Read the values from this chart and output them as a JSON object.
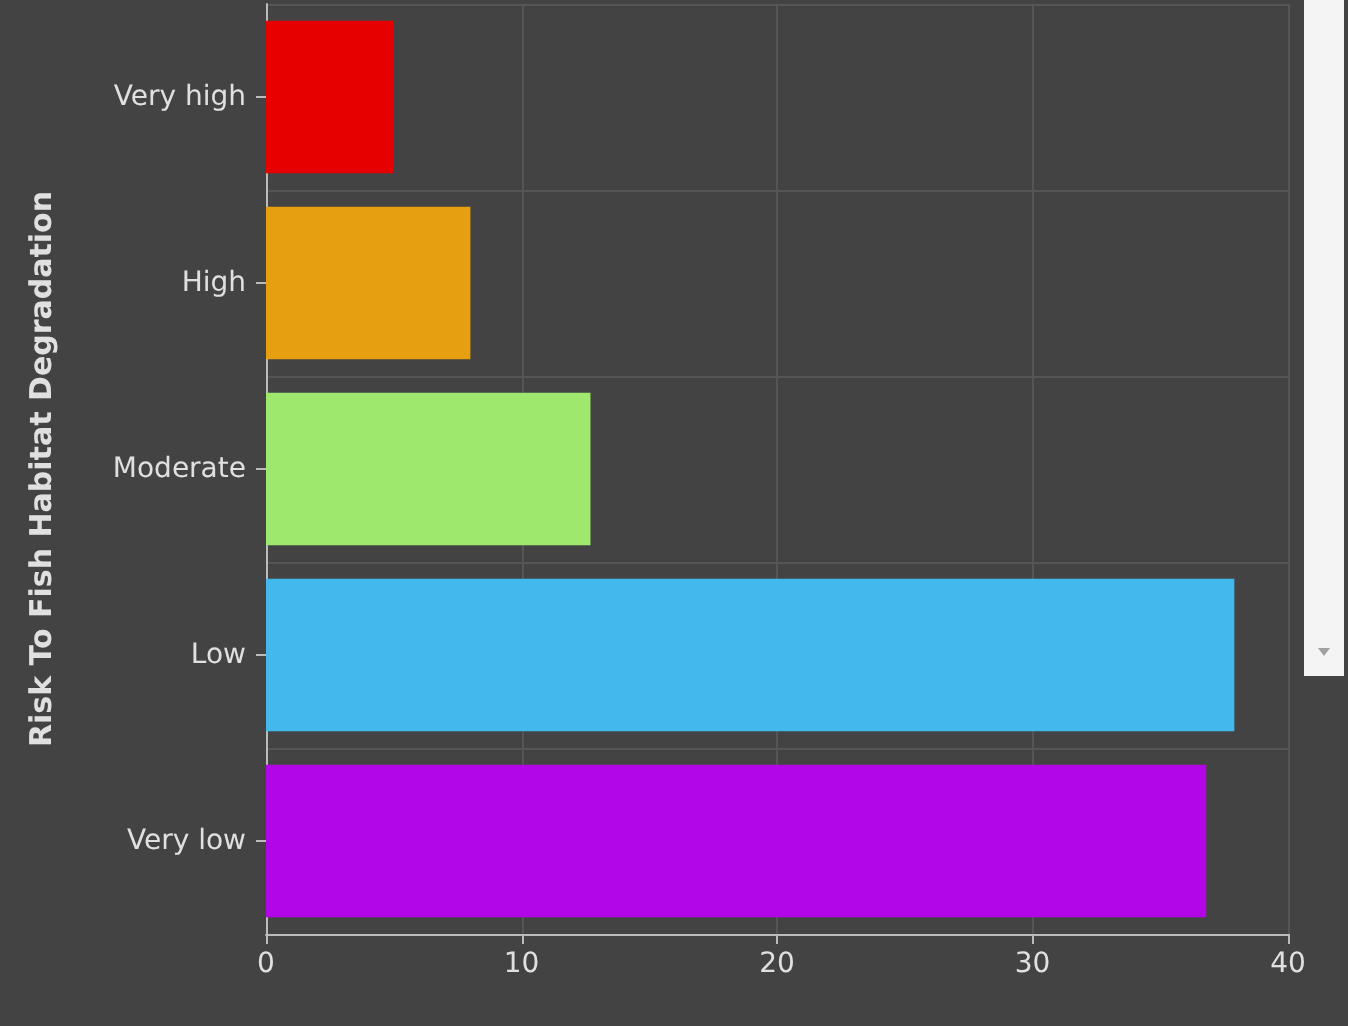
{
  "chart_data": {
    "type": "bar",
    "orientation": "horizontal",
    "ylabel": "Risk To Fish Habitat Degradation",
    "categories": [
      "Very high",
      "High",
      "Moderate",
      "Low",
      "Very low"
    ],
    "values": [
      5,
      8,
      12.7,
      37.9,
      36.8
    ],
    "colors": [
      "#e60000",
      "#e69f10",
      "#9ee86e",
      "#42b8ec",
      "#b206e8"
    ],
    "xlim": [
      0,
      40
    ],
    "xticks": [
      0,
      10,
      20,
      30,
      40
    ],
    "grid": true
  }
}
